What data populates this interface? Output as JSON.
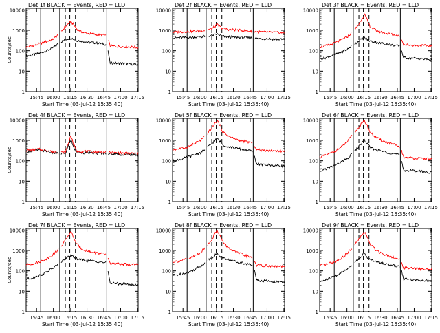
{
  "page": {
    "width": 640,
    "height": 480
  },
  "colors": {
    "events": "#000000",
    "lld": "#ff0000",
    "axis": "#000000",
    "background": "#ffffff"
  },
  "common": {
    "xlabel": "Start Time (03-Jul-12 15:35:40)",
    "ylabel": "Counts/sec",
    "x_tick_labels": [
      "15:45",
      "16:00",
      "16:15",
      "16:30",
      "16:45",
      "17:00",
      "17:15"
    ],
    "x_tick_minutes": [
      9.33,
      24.33,
      39.33,
      54.33,
      69.33,
      84.33,
      99.33
    ],
    "y_tick_labels": [
      "1",
      "10",
      "100",
      "1000",
      "10000"
    ],
    "y_tick_values": [
      1,
      10,
      100,
      1000,
      10000
    ],
    "xlim_minutes": [
      0,
      100
    ],
    "ylim": [
      1,
      12000
    ],
    "ylog": true,
    "vertical_solid_minutes": [
      13,
      30,
      72
    ],
    "vertical_dashed_minutes": [
      35,
      39,
      44
    ]
  },
  "chart_data": [
    {
      "type": "line",
      "title": "Det 1f BLACK = Events, RED = LLD",
      "ylabel": "Counts/sec",
      "xlabel": "Start Time (03-Jul-12 15:35:40)",
      "series": [
        {
          "name": "Events",
          "color": "#000000",
          "x": [
            0,
            5,
            10,
            15,
            20,
            25,
            30,
            35,
            38,
            40,
            42,
            45,
            50,
            55,
            60,
            65,
            70,
            72,
            75,
            80,
            85,
            90,
            95,
            100
          ],
          "y": [
            55,
            60,
            70,
            85,
            110,
            150,
            250,
            350,
            400,
            420,
            380,
            320,
            300,
            260,
            250,
            230,
            210,
            200,
            25,
            24,
            24,
            23,
            22,
            20
          ]
        },
        {
          "name": "LLD",
          "color": "#ff0000",
          "x": [
            0,
            5,
            10,
            15,
            20,
            25,
            30,
            35,
            38,
            40,
            42,
            45,
            50,
            55,
            60,
            65,
            70,
            72,
            75,
            80,
            85,
            90,
            95,
            100
          ],
          "y": [
            150,
            170,
            200,
            250,
            300,
            400,
            700,
            1500,
            2200,
            2500,
            2000,
            1200,
            800,
            700,
            650,
            600,
            580,
            560,
            170,
            165,
            160,
            155,
            150,
            140
          ]
        }
      ]
    },
    {
      "type": "line",
      "title": "Det 2f BLACK = Events, RED = LLD",
      "ylabel": "",
      "xlabel": "Start Time (03-Jul-12 15:35:40)",
      "series": [
        {
          "name": "Events",
          "color": "#000000",
          "x": [
            0,
            5,
            10,
            15,
            20,
            25,
            30,
            35,
            38,
            40,
            42,
            45,
            50,
            55,
            60,
            65,
            70,
            72,
            75,
            80,
            85,
            90,
            95,
            100
          ],
          "y": [
            420,
            430,
            440,
            450,
            460,
            480,
            500,
            550,
            600,
            640,
            580,
            500,
            480,
            460,
            450,
            440,
            430,
            420,
            400,
            390,
            380,
            370,
            360,
            350
          ]
        },
        {
          "name": "LLD",
          "color": "#ff0000",
          "x": [
            0,
            5,
            10,
            15,
            20,
            25,
            30,
            35,
            38,
            40,
            42,
            45,
            50,
            55,
            60,
            65,
            70,
            72,
            75,
            80,
            85,
            90,
            95,
            100
          ],
          "y": [
            800,
            820,
            850,
            880,
            900,
            950,
            1000,
            1200,
            1600,
            1900,
            1500,
            1200,
            1100,
            1050,
            1000,
            950,
            900,
            880,
            850,
            820,
            800,
            780,
            760,
            750
          ]
        }
      ]
    },
    {
      "type": "line",
      "title": "Det 3f BLACK = Events, RED = LLD",
      "ylabel": "",
      "xlabel": "Start Time (03-Jul-12 15:35:40)",
      "series": [
        {
          "name": "Events",
          "color": "#000000",
          "x": [
            0,
            5,
            10,
            15,
            20,
            25,
            30,
            35,
            38,
            40,
            42,
            45,
            50,
            55,
            60,
            65,
            70,
            72,
            75,
            80,
            85,
            90,
            95,
            100
          ],
          "y": [
            40,
            45,
            55,
            70,
            90,
            120,
            200,
            300,
            380,
            420,
            360,
            300,
            260,
            230,
            210,
            190,
            170,
            160,
            45,
            44,
            42,
            40,
            38,
            36
          ]
        },
        {
          "name": "LLD",
          "color": "#ff0000",
          "x": [
            0,
            5,
            10,
            15,
            20,
            25,
            30,
            35,
            38,
            40,
            42,
            45,
            50,
            55,
            60,
            65,
            70,
            72,
            75,
            80,
            85,
            90,
            95,
            100
          ],
          "y": [
            150,
            170,
            200,
            260,
            350,
            500,
            900,
            2000,
            4000,
            6000,
            3500,
            1500,
            1000,
            800,
            700,
            620,
            560,
            520,
            200,
            190,
            185,
            180,
            175,
            170
          ]
        }
      ]
    },
    {
      "type": "line",
      "title": "Det 4f BLACK = Events, RED = LLD",
      "ylabel": "Counts/sec",
      "xlabel": "Start Time (03-Jul-12 15:35:40)",
      "series": [
        {
          "name": "Events",
          "color": "#000000",
          "x": [
            0,
            5,
            10,
            15,
            20,
            25,
            30,
            35,
            38,
            40,
            42,
            45,
            50,
            55,
            60,
            65,
            70,
            72,
            75,
            80,
            85,
            90,
            95,
            100
          ],
          "y": [
            280,
            300,
            330,
            320,
            280,
            240,
            220,
            220,
            600,
            1100,
            500,
            260,
            250,
            240,
            235,
            230,
            225,
            220,
            215,
            210,
            205,
            200,
            195,
            190
          ]
        },
        {
          "name": "LLD",
          "color": "#ff0000",
          "x": [
            0,
            5,
            10,
            15,
            20,
            25,
            30,
            35,
            38,
            40,
            42,
            45,
            50,
            55,
            60,
            65,
            70,
            72,
            75,
            80,
            85,
            90,
            95,
            100
          ],
          "y": [
            320,
            340,
            370,
            360,
            310,
            270,
            250,
            260,
            800,
            1800,
            700,
            300,
            290,
            280,
            275,
            270,
            265,
            260,
            250,
            245,
            240,
            235,
            230,
            225
          ]
        }
      ]
    },
    {
      "type": "line",
      "title": "Det 5f BLACK = Events, RED = LLD",
      "ylabel": "",
      "xlabel": "Start Time (03-Jul-12 15:35:40)",
      "series": [
        {
          "name": "Events",
          "color": "#000000",
          "x": [
            0,
            5,
            10,
            15,
            20,
            25,
            30,
            35,
            38,
            40,
            42,
            45,
            50,
            55,
            60,
            65,
            70,
            72,
            75,
            80,
            85,
            90,
            95,
            100
          ],
          "y": [
            100,
            110,
            130,
            160,
            200,
            250,
            400,
            700,
            1000,
            1300,
            900,
            600,
            500,
            430,
            380,
            340,
            300,
            280,
            70,
            65,
            62,
            60,
            58,
            55
          ]
        },
        {
          "name": "LLD",
          "color": "#ff0000",
          "x": [
            0,
            5,
            10,
            15,
            20,
            25,
            30,
            35,
            38,
            40,
            42,
            45,
            50,
            55,
            60,
            65,
            70,
            72,
            75,
            80,
            85,
            90,
            95,
            100
          ],
          "y": [
            350,
            380,
            430,
            520,
            700,
            1000,
            1800,
            4000,
            7000,
            9000,
            6000,
            2500,
            1600,
            1200,
            1000,
            880,
            780,
            720,
            350,
            330,
            320,
            310,
            300,
            290
          ]
        }
      ]
    },
    {
      "type": "line",
      "title": "Det 6f BLACK = Events, RED = LLD",
      "ylabel": "",
      "xlabel": "Start Time (03-Jul-12 15:35:40)",
      "series": [
        {
          "name": "Events",
          "color": "#000000",
          "x": [
            0,
            5,
            10,
            15,
            20,
            25,
            30,
            35,
            38,
            40,
            42,
            45,
            50,
            55,
            60,
            65,
            70,
            72,
            75,
            80,
            85,
            90,
            95,
            100
          ],
          "y": [
            35,
            40,
            50,
            65,
            90,
            130,
            250,
            500,
            800,
            1000,
            700,
            450,
            350,
            300,
            260,
            230,
            200,
            180,
            35,
            33,
            32,
            30,
            28,
            27
          ]
        },
        {
          "name": "LLD",
          "color": "#ff0000",
          "x": [
            0,
            5,
            10,
            15,
            20,
            25,
            30,
            35,
            38,
            40,
            42,
            45,
            50,
            55,
            60,
            65,
            70,
            72,
            75,
            80,
            85,
            90,
            95,
            100
          ],
          "y": [
            150,
            180,
            230,
            320,
            500,
            900,
            2000,
            4500,
            7000,
            9000,
            6000,
            2500,
            1400,
            1000,
            800,
            650,
            520,
            450,
            150,
            140,
            135,
            130,
            125,
            120
          ]
        }
      ]
    },
    {
      "type": "line",
      "title": "Det 7f BLACK = Events, RED = LLD",
      "ylabel": "Counts/sec",
      "xlabel": "Start Time (03-Jul-12 15:35:40)",
      "series": [
        {
          "name": "Events",
          "color": "#000000",
          "x": [
            0,
            5,
            10,
            15,
            20,
            25,
            30,
            35,
            38,
            40,
            42,
            45,
            50,
            55,
            60,
            65,
            70,
            72,
            75,
            80,
            85,
            90,
            95,
            100
          ],
          "y": [
            40,
            45,
            55,
            70,
            100,
            150,
            250,
            400,
            500,
            550,
            480,
            400,
            350,
            320,
            300,
            280,
            260,
            250,
            25,
            24,
            23,
            22,
            21,
            20
          ]
        },
        {
          "name": "LLD",
          "color": "#ff0000",
          "x": [
            0,
            5,
            10,
            15,
            20,
            25,
            30,
            35,
            38,
            40,
            42,
            45,
            50,
            55,
            60,
            65,
            70,
            72,
            75,
            80,
            85,
            90,
            95,
            100
          ],
          "y": [
            200,
            220,
            260,
            320,
            450,
            700,
            1300,
            3000,
            6000,
            8000,
            5000,
            2000,
            1200,
            900,
            800,
            720,
            650,
            620,
            230,
            220,
            215,
            210,
            205,
            200
          ]
        }
      ]
    },
    {
      "type": "line",
      "title": "Det 8f BLACK = Events, RED = LLD",
      "ylabel": "",
      "xlabel": "Start Time (03-Jul-12 15:35:40)",
      "series": [
        {
          "name": "Events",
          "color": "#000000",
          "x": [
            0,
            5,
            10,
            15,
            20,
            25,
            30,
            35,
            38,
            40,
            42,
            45,
            50,
            55,
            60,
            65,
            70,
            72,
            75,
            80,
            85,
            90,
            95,
            100
          ],
          "y": [
            60,
            65,
            75,
            90,
            120,
            170,
            280,
            450,
            600,
            700,
            550,
            420,
            350,
            300,
            260,
            230,
            200,
            190,
            35,
            33,
            32,
            30,
            28,
            27
          ]
        },
        {
          "name": "LLD",
          "color": "#ff0000",
          "x": [
            0,
            5,
            10,
            15,
            20,
            25,
            30,
            35,
            38,
            40,
            42,
            45,
            50,
            55,
            60,
            65,
            70,
            72,
            75,
            80,
            85,
            90,
            95,
            100
          ],
          "y": [
            280,
            300,
            340,
            400,
            550,
            800,
            1500,
            3500,
            7000,
            9500,
            6000,
            2500,
            1300,
            900,
            700,
            560,
            450,
            400,
            190,
            180,
            175,
            170,
            165,
            160
          ]
        }
      ]
    },
    {
      "type": "line",
      "title": "Det 9f BLACK = Events, RED = LLD",
      "ylabel": "",
      "xlabel": "Start Time (03-Jul-12 15:35:40)",
      "series": [
        {
          "name": "Events",
          "color": "#000000",
          "x": [
            0,
            5,
            10,
            15,
            20,
            25,
            30,
            35,
            38,
            40,
            42,
            45,
            50,
            55,
            60,
            65,
            70,
            72,
            75,
            80,
            85,
            90,
            95,
            100
          ],
          "y": [
            30,
            35,
            45,
            60,
            85,
            130,
            230,
            400,
            600,
            700,
            500,
            350,
            280,
            240,
            210,
            190,
            170,
            160,
            40,
            38,
            36,
            35,
            34,
            33
          ]
        },
        {
          "name": "LLD",
          "color": "#ff0000",
          "x": [
            0,
            5,
            10,
            15,
            20,
            25,
            30,
            35,
            38,
            40,
            42,
            45,
            50,
            55,
            60,
            65,
            70,
            72,
            75,
            80,
            85,
            90,
            95,
            100
          ],
          "y": [
            180,
            200,
            240,
            300,
            450,
            750,
            1500,
            3500,
            6000,
            8000,
            5000,
            2000,
            1100,
            750,
            600,
            480,
            380,
            340,
            140,
            135,
            130,
            125,
            120,
            115
          ]
        }
      ]
    }
  ]
}
